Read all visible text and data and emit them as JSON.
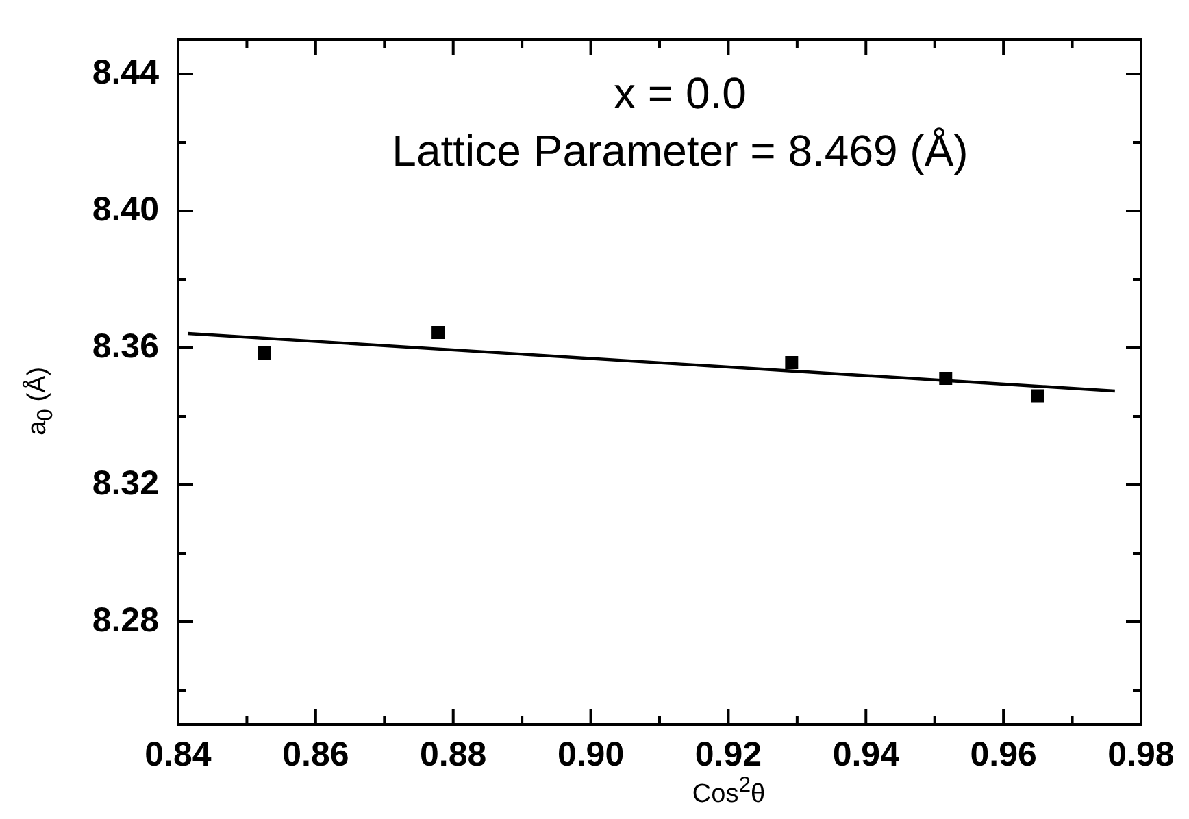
{
  "chart_data": {
    "type": "scatter",
    "xlabel": "Cos$^{2}$θ",
    "ylabel": "a$_{0}$ (Å)",
    "annotations": [
      "x = 0.0",
      "Lattice Parameter = 8.469 (Å)"
    ],
    "series": [
      {
        "type": "scatter",
        "color": "#000000",
        "marker": "square",
        "x": [
          0.8525,
          0.8778,
          0.9292,
          0.9516,
          0.965
        ],
        "values": [
          8.3585,
          8.3645,
          8.3557,
          8.3511,
          8.346
        ]
      },
      {
        "type": "line",
        "color": "#000000",
        "marker": "none",
        "line_style": "solid",
        "x": [
          0.8414,
          0.9762
        ],
        "values": [
          8.3642,
          8.3474
        ]
      }
    ],
    "xlim": [
      0.84,
      0.98
    ],
    "xticks": [
      0.84,
      {
        "value": 0.85,
        "label": null
      },
      0.86,
      {
        "value": 0.87,
        "label": null
      },
      0.88,
      {
        "value": 0.89,
        "label": null
      },
      {
        "value": 0.9,
        "label": "0.90"
      },
      {
        "value": 0.91,
        "label": null
      },
      0.92,
      {
        "value": 0.93,
        "label": null
      },
      0.94,
      {
        "value": 0.95,
        "label": null
      },
      0.96,
      {
        "value": 0.97,
        "label": null
      },
      0.98
    ],
    "ylim": [
      8.25,
      8.45
    ],
    "yticks": [
      {
        "value": 8.26,
        "label": null
      },
      8.28,
      {
        "value": 8.3,
        "label": null
      },
      8.32,
      {
        "value": 8.34,
        "label": null
      },
      8.36,
      {
        "value": 8.38,
        "label": null
      },
      {
        "value": 8.4,
        "label": "8.40"
      },
      {
        "value": 8.42,
        "label": null
      },
      8.44
    ],
    "grid": false,
    "legend": false
  }
}
